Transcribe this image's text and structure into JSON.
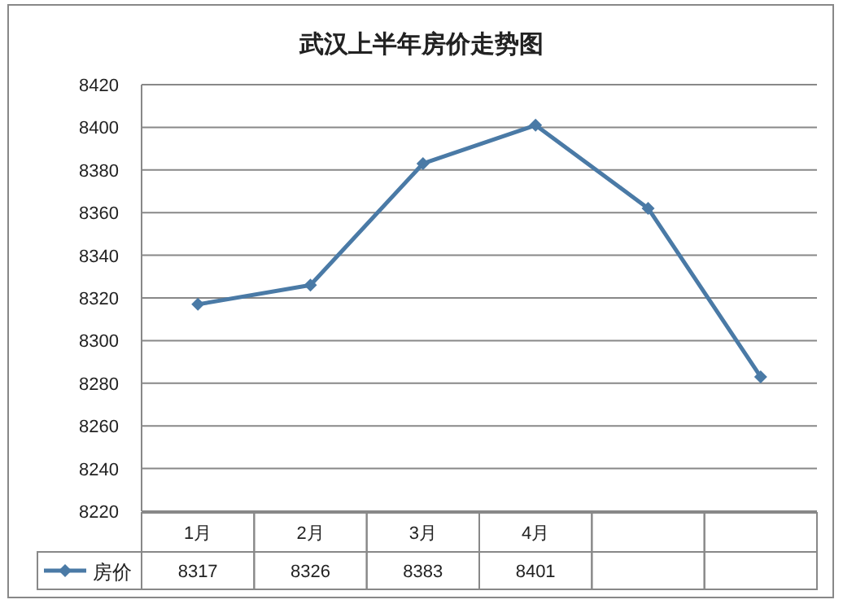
{
  "chart_data": {
    "type": "line",
    "title": "武汉上半年房价走势图",
    "categories": [
      "1月",
      "2月",
      "3月",
      "4月",
      null,
      null
    ],
    "series": [
      {
        "name": "房价",
        "color": "#4a7aa6",
        "values": [
          8317,
          8326,
          8383,
          8401,
          8362,
          8283
        ],
        "value_labels": [
          "8317",
          "8326",
          "8383",
          "8401",
          null,
          null
        ]
      }
    ],
    "ylim": [
      8220,
      8420
    ],
    "yticks": [
      8220,
      8240,
      8260,
      8280,
      8300,
      8320,
      8340,
      8360,
      8380,
      8400,
      8420
    ],
    "grid": "y",
    "marker": "diamond",
    "legend": "bottom"
  }
}
